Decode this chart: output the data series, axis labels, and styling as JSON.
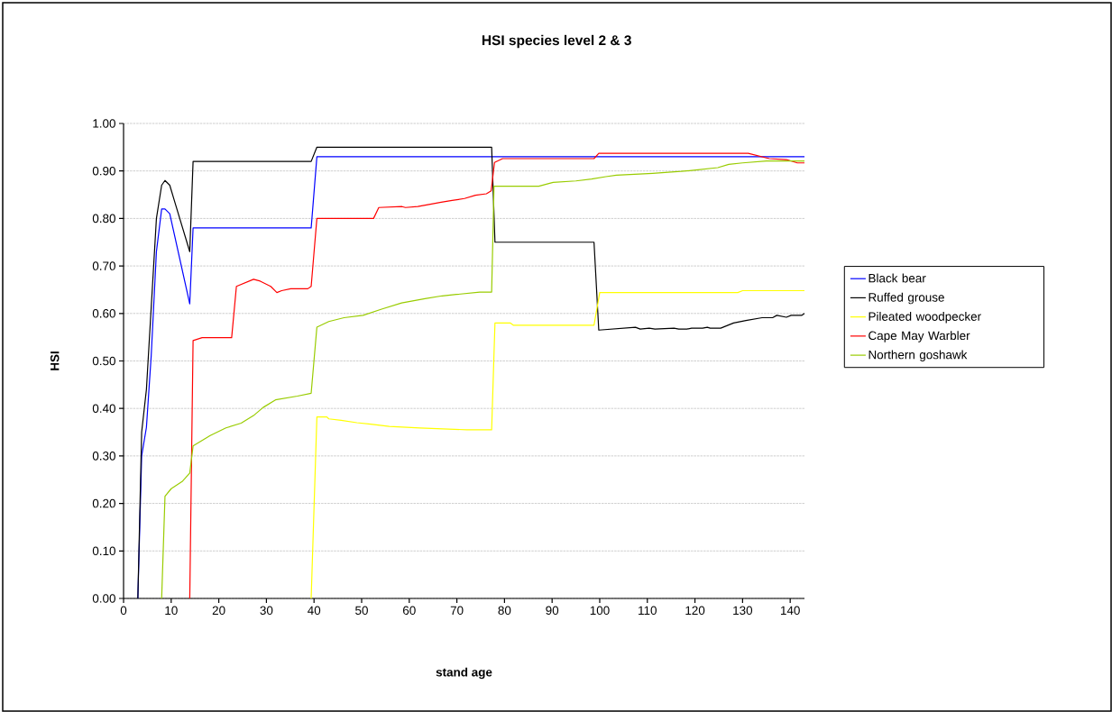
{
  "chart_data": {
    "type": "line",
    "title": "HSI species level 2 & 3",
    "xlabel": "stand age",
    "ylabel": "HSI",
    "xlim": [
      0,
      143
    ],
    "xticks": [
      0,
      10,
      20,
      30,
      40,
      50,
      60,
      70,
      80,
      90,
      100,
      110,
      120,
      130,
      140
    ],
    "ylim": [
      0,
      1
    ],
    "yticks": [
      {
        "value": 0,
        "label": "0.00"
      },
      {
        "value": 0.1,
        "label": "0.10"
      },
      {
        "value": 0.2,
        "label": "0.20"
      },
      {
        "value": 0.3,
        "label": "0.30"
      },
      {
        "value": 0.4,
        "label": "0.40"
      },
      {
        "value": 0.5,
        "label": "0.50"
      },
      {
        "value": 0.6,
        "label": "0.60"
      },
      {
        "value": 0.7,
        "label": "0.70"
      },
      {
        "value": 0.8,
        "label": "0.80"
      },
      {
        "value": 0.9,
        "label": "0.90"
      },
      {
        "value": 1,
        "label": "1.00"
      }
    ],
    "grid": "y",
    "legend": "right",
    "marker": "none",
    "line_style": "solid",
    "series": [
      {
        "name": "Black bear",
        "color": "#0000ff",
        "x": [
          3,
          3.8,
          4.8,
          5.8,
          6.9,
          8.0,
          8.7,
          9.7,
          13.9,
          14.6,
          39.4,
          40.6,
          143
        ],
        "values": [
          0,
          0.3,
          0.36,
          0.51,
          0.73,
          0.82,
          0.82,
          0.81,
          0.62,
          0.78,
          0.78,
          0.93,
          0.93
        ]
      },
      {
        "name": "Ruffed grouse",
        "color": "#000000",
        "x": [
          3,
          3.8,
          4.8,
          6.9,
          8.0,
          8.7,
          9.7,
          10.6,
          13.9,
          14.6,
          39.4,
          40.6,
          77.3,
          78,
          98.8,
          99.8,
          107.5,
          108.5,
          110.4,
          111.6,
          115.6,
          116.6,
          118.3,
          119.3,
          121.6,
          122.6,
          123.2,
          125.4,
          128.1,
          130.7,
          134.1,
          136.3,
          137.2,
          139.2,
          140.2,
          142.4,
          143
        ],
        "values": [
          0,
          0.35,
          0.44,
          0.8,
          0.87,
          0.88,
          0.87,
          0.84,
          0.73,
          0.92,
          0.92,
          0.95,
          0.95,
          0.75,
          0.75,
          0.565,
          0.571,
          0.567,
          0.569,
          0.567,
          0.569,
          0.567,
          0.567,
          0.569,
          0.569,
          0.571,
          0.569,
          0.569,
          0.58,
          0.585,
          0.591,
          0.591,
          0.596,
          0.592,
          0.596,
          0.596,
          0.6
        ]
      },
      {
        "name": "Pileated woodpecker",
        "color": "#ffff00",
        "x": [
          39.4,
          40.6,
          42.7,
          43.1,
          45.7,
          49.0,
          51.9,
          55.8,
          62.3,
          72.1,
          77.3,
          78,
          81.2,
          81.9,
          98.8,
          100,
          129,
          130,
          143
        ],
        "values": [
          0,
          0.382,
          0.382,
          0.378,
          0.375,
          0.37,
          0.367,
          0.362,
          0.359,
          0.355,
          0.355,
          0.58,
          0.58,
          0.575,
          0.575,
          0.644,
          0.644,
          0.648,
          0.648
        ]
      },
      {
        "name": "Cape May Warbler",
        "color": "#ff0000",
        "x": [
          13.9,
          14.6,
          16.5,
          22.7,
          23.7,
          27.3,
          28.7,
          30.9,
          32.2,
          33.2,
          35.1,
          38.7,
          39.4,
          40.6,
          52.5,
          53.6,
          58.5,
          59.2,
          61.8,
          64.4,
          66.7,
          69.0,
          71.6,
          73.9,
          76.2,
          77.2,
          77.9,
          79.6,
          98.8,
          99.8,
          131.2,
          135.6,
          139.2,
          141.5,
          143
        ],
        "values": [
          0,
          0.543,
          0.549,
          0.549,
          0.657,
          0.672,
          0.668,
          0.657,
          0.644,
          0.648,
          0.652,
          0.652,
          0.657,
          0.8,
          0.8,
          0.823,
          0.825,
          0.823,
          0.825,
          0.83,
          0.834,
          0.838,
          0.842,
          0.849,
          0.852,
          0.858,
          0.918,
          0.926,
          0.926,
          0.937,
          0.937,
          0.926,
          0.924,
          0.917,
          0.917
        ]
      },
      {
        "name": "Northern goshawk",
        "color": "#99cc00",
        "x": [
          8.0,
          8.7,
          10.0,
          12.3,
          13.9,
          14.6,
          18.2,
          21.5,
          24.7,
          27.3,
          29.3,
          31.9,
          36.5,
          39.4,
          40.6,
          43.1,
          46.3,
          50.3,
          54.2,
          58.4,
          63.3,
          66.9,
          69.9,
          74.8,
          77.3,
          77.8,
          87.2,
          90.2,
          95,
          98.3,
          101.3,
          103.5,
          111.1,
          117,
          120.2,
          124.8,
          127.1,
          130,
          135,
          143
        ],
        "values": [
          0,
          0.215,
          0.231,
          0.246,
          0.264,
          0.321,
          0.343,
          0.359,
          0.369,
          0.385,
          0.402,
          0.418,
          0.426,
          0.432,
          0.571,
          0.583,
          0.591,
          0.596,
          0.609,
          0.622,
          0.631,
          0.637,
          0.64,
          0.645,
          0.645,
          0.868,
          0.868,
          0.876,
          0.879,
          0.883,
          0.888,
          0.891,
          0.895,
          0.899,
          0.902,
          0.907,
          0.914,
          0.917,
          0.921,
          0.921
        ]
      }
    ]
  }
}
